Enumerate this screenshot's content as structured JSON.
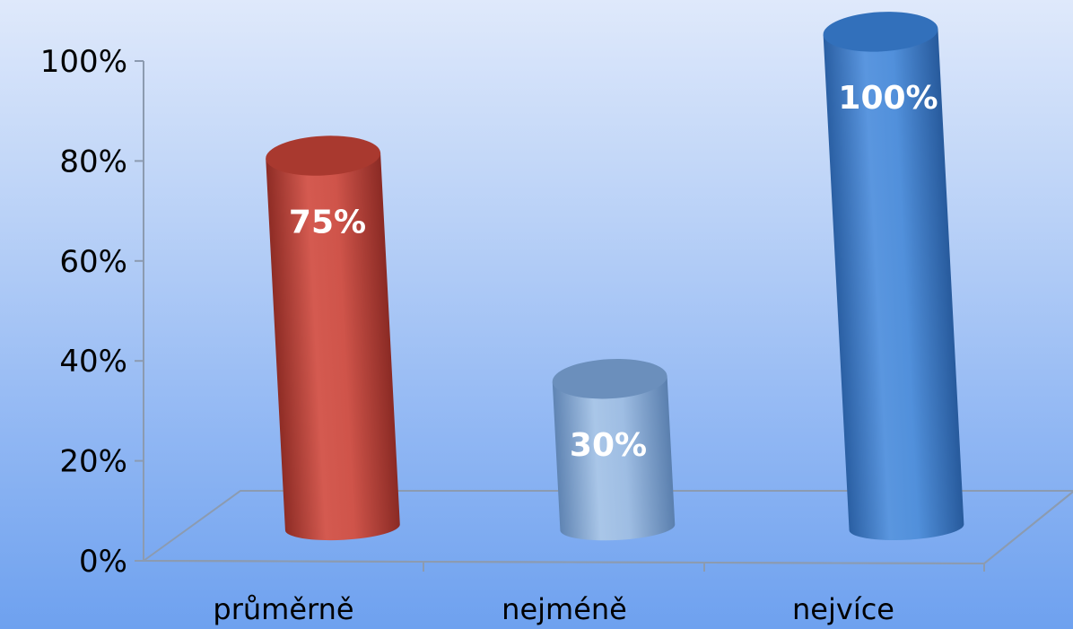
{
  "chart_data": {
    "type": "bar",
    "style": "3d-cylinder",
    "categories": [
      "průměrně",
      "nejméně",
      "nejvíce"
    ],
    "values": [
      75,
      30,
      100
    ],
    "data_labels": [
      "75%",
      "30%",
      "100%"
    ],
    "y_ticks": [
      "0%",
      "20%",
      "40%",
      "60%",
      "80%",
      "100%"
    ],
    "ylim": [
      0,
      100
    ],
    "grid": false,
    "bar_colors": [
      "#c94a40",
      "#7fa4d0",
      "#3f7fcc"
    ],
    "title": "",
    "xlabel": "",
    "ylabel": ""
  }
}
